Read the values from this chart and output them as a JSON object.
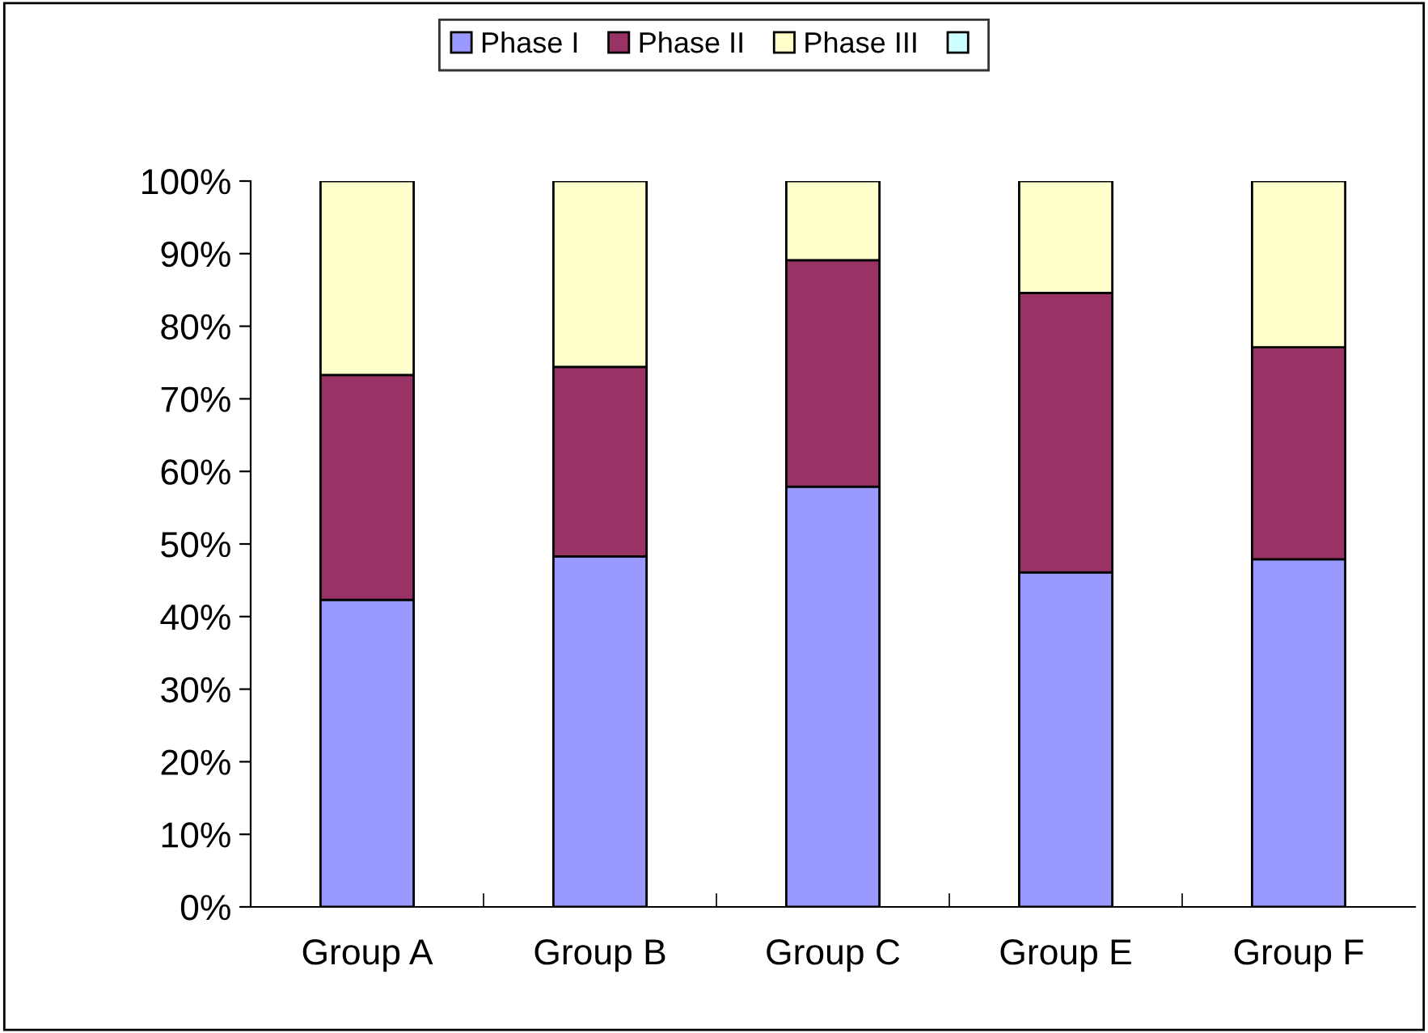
{
  "chart_data": {
    "type": "bar",
    "stacked": true,
    "categories": [
      "Group A",
      "Group B",
      "Group C",
      "Group E",
      "Group F"
    ],
    "series": [
      {
        "name": "Phase I",
        "color": "#9999ff",
        "values": [
          42.3,
          48.3,
          57.9,
          46.1,
          47.9
        ]
      },
      {
        "name": "Phase II",
        "color": "#993366",
        "values": [
          31.0,
          26.1,
          31.2,
          38.5,
          29.2
        ]
      },
      {
        "name": "Phase III",
        "color": "#ffffcc",
        "values": [
          26.7,
          25.6,
          10.9,
          15.4,
          22.9
        ]
      },
      {
        "color": "#ccffff",
        "values": [
          null,
          null,
          null,
          null,
          null
        ]
      }
    ],
    "ylim": [
      0,
      100
    ],
    "yticks": [
      {
        "value": 0,
        "label": "0%"
      },
      {
        "value": 10,
        "label": "10%"
      },
      {
        "value": 20,
        "label": "20%"
      },
      {
        "value": 30,
        "label": "30%"
      },
      {
        "value": 40,
        "label": "40%"
      },
      {
        "value": 50,
        "label": "50%"
      },
      {
        "value": 60,
        "label": "60%"
      },
      {
        "value": 70,
        "label": "70%"
      },
      {
        "value": 80,
        "label": "80%"
      },
      {
        "value": 90,
        "label": "90%"
      },
      {
        "value": 100,
        "label": "100%"
      }
    ],
    "grid": false,
    "legend": "top"
  }
}
